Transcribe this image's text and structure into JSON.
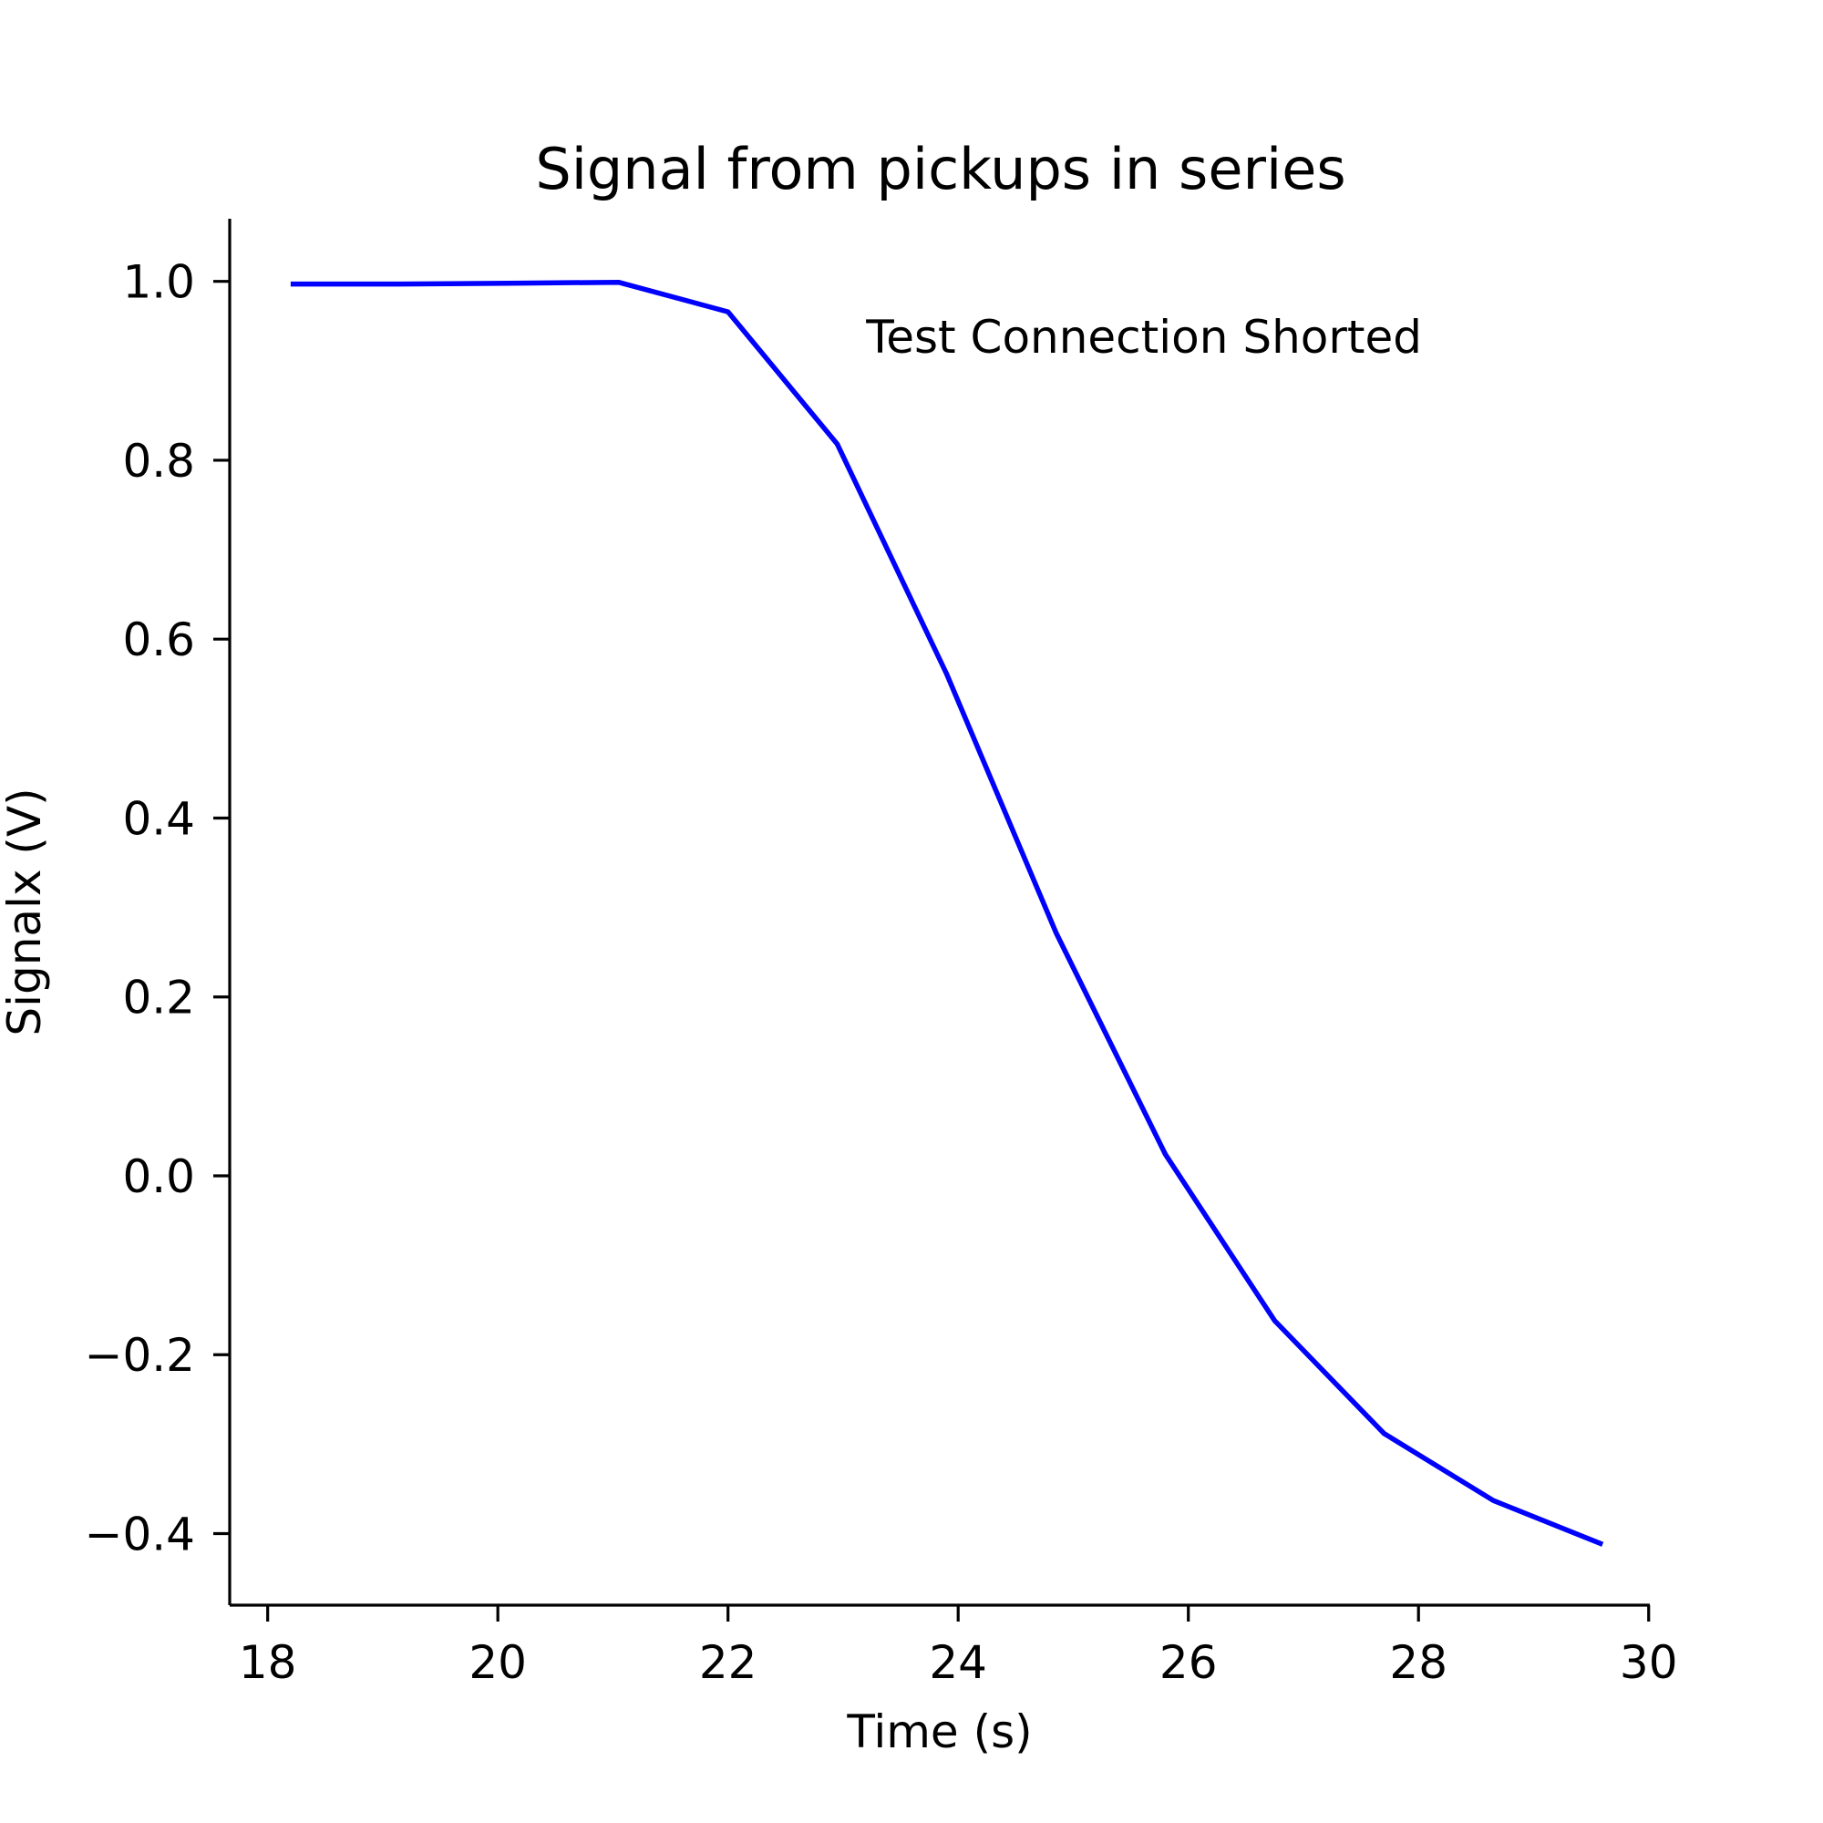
{
  "chart_data": {
    "type": "line",
    "title": "Signal from pickups in series",
    "xlabel": "Time (s)",
    "ylabel": "Signalx (V)",
    "xlim": [
      17.67,
      30.01
    ],
    "ylim": [
      -0.48,
      1.07
    ],
    "x_ticks": [
      18,
      20,
      22,
      24,
      26,
      28,
      30
    ],
    "y_ticks": [
      1.0,
      0.8,
      0.6,
      0.4,
      0.2,
      0.0,
      -0.2,
      -0.4
    ],
    "x_tick_labels": [
      "18",
      "20",
      "22",
      "24",
      "26",
      "28",
      "30"
    ],
    "y_tick_labels": [
      "1.0",
      "0.8",
      "0.6",
      "0.4",
      "0.2",
      "0.0",
      "−0.2",
      "−0.4"
    ],
    "grid": false,
    "annotation": {
      "text": "Test Connection Shorted",
      "x": 23.2,
      "y": 0.92
    },
    "series": [
      {
        "color": "#0000ff",
        "x": [
          18.2,
          19.15,
          20.1,
          21.05,
          22.0,
          22.95,
          23.9,
          24.85,
          25.8,
          26.75,
          27.7,
          28.65,
          29.6
        ],
        "y": [
          0.997,
          0.997,
          0.998,
          0.999,
          0.966,
          0.818,
          0.561,
          0.272,
          0.024,
          -0.162,
          -0.288,
          -0.363,
          -0.412
        ]
      }
    ]
  }
}
